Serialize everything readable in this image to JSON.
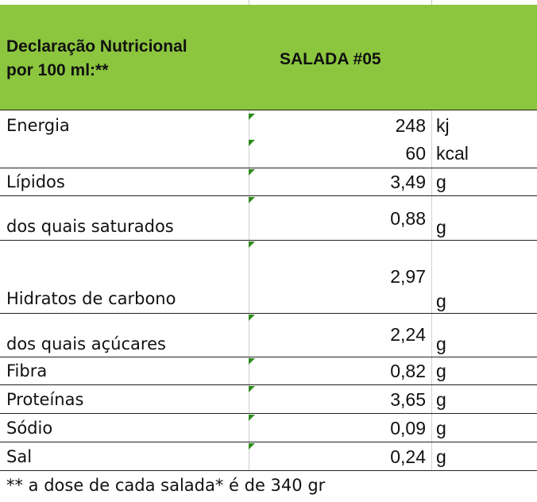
{
  "table": {
    "header_label_line1": "Declaração Nutricional",
    "header_label_line2": "por 100 ml:**",
    "product": "SALADA #05",
    "rows": [
      {
        "label": "Energia",
        "value": "248",
        "unit": "kj"
      },
      {
        "label": "",
        "value": "60",
        "unit": "kcal"
      },
      {
        "label": "Lípidos",
        "value": "3,49",
        "unit": "g"
      },
      {
        "label": "dos quais saturados",
        "value": "0,88",
        "unit": "g"
      },
      {
        "label": "Hidratos de carbono",
        "value": "2,97",
        "unit": "g"
      },
      {
        "label": "dos quais açúcares",
        "value": "2,24",
        "unit": "g"
      },
      {
        "label": "Fibra",
        "value": "0,82",
        "unit": "g"
      },
      {
        "label": "Proteínas",
        "value": "3,65",
        "unit": "g"
      },
      {
        "label": "Sódio",
        "value": "0,09",
        "unit": "g"
      },
      {
        "label": "Sal",
        "value": "0,24",
        "unit": "g"
      }
    ],
    "footnote": "** a dose de cada salada* é de 340 gr"
  },
  "colors": {
    "header_bg": "#8cc63f",
    "indicator": "#2e8b1e"
  }
}
